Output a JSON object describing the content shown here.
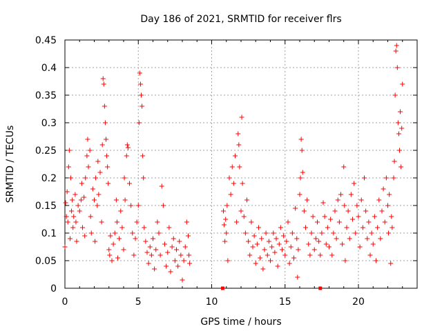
{
  "chart_data": {
    "type": "scatter",
    "title": "Day 186 of 2021, SRMTID for receiver flrs",
    "xlabel": "GPS time / hours",
    "ylabel": "SRMTID / TECUs",
    "xlim": [
      0,
      24
    ],
    "ylim": [
      0,
      0.45
    ],
    "xticks": [
      0,
      5,
      10,
      15,
      20
    ],
    "xtick_labels": [
      "0",
      "5",
      "10",
      "15",
      "20"
    ],
    "yticks": [
      0,
      0.05,
      0.1,
      0.15,
      0.2,
      0.25,
      0.3,
      0.35,
      0.4,
      0.45
    ],
    "ytick_labels": [
      "0",
      "0.05",
      "0.1",
      "0.15",
      "0.2",
      "0.25",
      "0.3",
      "0.35",
      "0.4",
      "0.45"
    ],
    "grid": true,
    "marker": "+",
    "marker_color": "#ff0000",
    "zero_markers": {
      "marker": "square",
      "points": [
        [
          10.75,
          0
        ],
        [
          17.4,
          0
        ]
      ]
    },
    "series": [
      {
        "name": "SRMTID",
        "points": [
          [
            0.0,
            0.075
          ],
          [
            0.05,
            0.155
          ],
          [
            0.1,
            0.13
          ],
          [
            0.15,
            0.175
          ],
          [
            0.2,
            0.12
          ],
          [
            0.25,
            0.22
          ],
          [
            0.3,
            0.25
          ],
          [
            0.35,
            0.09
          ],
          [
            0.4,
            0.2
          ],
          [
            0.45,
            0.14
          ],
          [
            0.5,
            0.16
          ],
          [
            0.55,
            0.11
          ],
          [
            0.6,
            0.13
          ],
          [
            0.7,
            0.17
          ],
          [
            0.75,
            0.12
          ],
          [
            0.8,
            0.085
          ],
          [
            0.9,
            0.15
          ],
          [
            1.0,
            0.14
          ],
          [
            1.1,
            0.16
          ],
          [
            1.15,
            0.19
          ],
          [
            1.2,
            0.11
          ],
          [
            1.3,
            0.165
          ],
          [
            1.35,
            0.095
          ],
          [
            1.4,
            0.2
          ],
          [
            1.5,
            0.24
          ],
          [
            1.55,
            0.27
          ],
          [
            1.6,
            0.22
          ],
          [
            1.7,
            0.25
          ],
          [
            1.75,
            0.13
          ],
          [
            1.8,
            0.1
          ],
          [
            1.9,
            0.18
          ],
          [
            2.0,
            0.16
          ],
          [
            2.05,
            0.085
          ],
          [
            2.1,
            0.2
          ],
          [
            2.2,
            0.15
          ],
          [
            2.25,
            0.23
          ],
          [
            2.3,
            0.17
          ],
          [
            2.4,
            0.21
          ],
          [
            2.5,
            0.12
          ],
          [
            2.55,
            0.26
          ],
          [
            2.6,
            0.38
          ],
          [
            2.65,
            0.37
          ],
          [
            2.7,
            0.33
          ],
          [
            2.75,
            0.3
          ],
          [
            2.8,
            0.27
          ],
          [
            2.85,
            0.24
          ],
          [
            2.9,
            0.22
          ],
          [
            2.95,
            0.19
          ],
          [
            3.0,
            0.07
          ],
          [
            3.05,
            0.06
          ],
          [
            3.1,
            0.095
          ],
          [
            3.2,
            0.05
          ],
          [
            3.3,
            0.08
          ],
          [
            3.4,
            0.1
          ],
          [
            3.5,
            0.16
          ],
          [
            3.55,
            0.12
          ],
          [
            3.6,
            0.055
          ],
          [
            3.7,
            0.09
          ],
          [
            3.8,
            0.14
          ],
          [
            3.9,
            0.11
          ],
          [
            4.0,
            0.07
          ],
          [
            4.05,
            0.2
          ],
          [
            4.1,
            0.16
          ],
          [
            4.2,
            0.24
          ],
          [
            4.25,
            0.26
          ],
          [
            4.3,
            0.255
          ],
          [
            4.4,
            0.19
          ],
          [
            4.5,
            0.15
          ],
          [
            4.6,
            0.1
          ],
          [
            4.7,
            0.06
          ],
          [
            4.8,
            0.09
          ],
          [
            4.9,
            0.12
          ],
          [
            5.0,
            0.15
          ],
          [
            5.05,
            0.3
          ],
          [
            5.1,
            0.39
          ],
          [
            5.15,
            0.37
          ],
          [
            5.2,
            0.35
          ],
          [
            5.25,
            0.33
          ],
          [
            5.3,
            0.24
          ],
          [
            5.35,
            0.2
          ],
          [
            5.4,
            0.11
          ],
          [
            5.5,
            0.085
          ],
          [
            5.6,
            0.065
          ],
          [
            5.7,
            0.045
          ],
          [
            5.8,
            0.075
          ],
          [
            5.9,
            0.06
          ],
          [
            6.0,
            0.09
          ],
          [
            6.1,
            0.035
          ],
          [
            6.2,
            0.07
          ],
          [
            6.3,
            0.12
          ],
          [
            6.4,
            0.1
          ],
          [
            6.5,
            0.06
          ],
          [
            6.6,
            0.185
          ],
          [
            6.7,
            0.15
          ],
          [
            6.8,
            0.08
          ],
          [
            6.9,
            0.04
          ],
          [
            7.0,
            0.065
          ],
          [
            7.1,
            0.11
          ],
          [
            7.2,
            0.03
          ],
          [
            7.3,
            0.075
          ],
          [
            7.4,
            0.09
          ],
          [
            7.5,
            0.05
          ],
          [
            7.6,
            0.07
          ],
          [
            7.7,
            0.04
          ],
          [
            7.8,
            0.085
          ],
          [
            7.9,
            0.06
          ],
          [
            8.0,
            0.015
          ],
          [
            8.1,
            0.05
          ],
          [
            8.2,
            0.075
          ],
          [
            8.3,
            0.12
          ],
          [
            8.4,
            0.095
          ],
          [
            8.45,
            0.06
          ],
          [
            8.5,
            0.045
          ],
          [
            10.8,
            0.14
          ],
          [
            10.85,
            0.115
          ],
          [
            10.9,
            0.085
          ],
          [
            10.95,
            0.125
          ],
          [
            11.0,
            0.1
          ],
          [
            11.05,
            0.15
          ],
          [
            11.1,
            0.05
          ],
          [
            11.2,
            0.2
          ],
          [
            11.3,
            0.17
          ],
          [
            11.4,
            0.22
          ],
          [
            11.5,
            0.19
          ],
          [
            11.6,
            0.24
          ],
          [
            11.7,
            0.12
          ],
          [
            11.8,
            0.28
          ],
          [
            11.85,
            0.26
          ],
          [
            11.9,
            0.22
          ],
          [
            12.0,
            0.14
          ],
          [
            12.05,
            0.31
          ],
          [
            12.1,
            0.19
          ],
          [
            12.2,
            0.13
          ],
          [
            12.3,
            0.1
          ],
          [
            12.4,
            0.16
          ],
          [
            12.5,
            0.085
          ],
          [
            12.6,
            0.06
          ],
          [
            12.7,
            0.12
          ],
          [
            12.8,
            0.075
          ],
          [
            12.9,
            0.095
          ],
          [
            13.0,
            0.045
          ],
          [
            13.1,
            0.08
          ],
          [
            13.2,
            0.11
          ],
          [
            13.3,
            0.055
          ],
          [
            13.4,
            0.09
          ],
          [
            13.5,
            0.035
          ],
          [
            13.6,
            0.07
          ],
          [
            13.7,
            0.1
          ],
          [
            13.8,
            0.06
          ],
          [
            13.9,
            0.085
          ],
          [
            14.0,
            0.05
          ],
          [
            14.1,
            0.075
          ],
          [
            14.2,
            0.1
          ],
          [
            14.3,
            0.065
          ],
          [
            14.4,
            0.09
          ],
          [
            14.5,
            0.04
          ],
          [
            14.6,
            0.08
          ],
          [
            14.7,
            0.11
          ],
          [
            14.8,
            0.07
          ],
          [
            14.9,
            0.095
          ],
          [
            15.0,
            0.06
          ],
          [
            15.1,
            0.085
          ],
          [
            15.2,
            0.12
          ],
          [
            15.3,
            0.045
          ],
          [
            15.4,
            0.075
          ],
          [
            15.5,
            0.1
          ],
          [
            15.6,
            0.055
          ],
          [
            15.7,
            0.145
          ],
          [
            15.8,
            0.09
          ],
          [
            15.85,
            0.02
          ],
          [
            15.9,
            0.07
          ],
          [
            16.0,
            0.17
          ],
          [
            16.05,
            0.2
          ],
          [
            16.1,
            0.27
          ],
          [
            16.15,
            0.25
          ],
          [
            16.2,
            0.21
          ],
          [
            16.3,
            0.14
          ],
          [
            16.4,
            0.11
          ],
          [
            16.5,
            0.16
          ],
          [
            16.6,
            0.08
          ],
          [
            16.7,
            0.06
          ],
          [
            16.8,
            0.1
          ],
          [
            16.9,
            0.13
          ],
          [
            17.0,
            0.07
          ],
          [
            17.1,
            0.09
          ],
          [
            17.2,
            0.12
          ],
          [
            17.3,
            0.085
          ],
          [
            17.4,
            0.06
          ],
          [
            17.5,
            0.1
          ],
          [
            17.6,
            0.155
          ],
          [
            17.7,
            0.13
          ],
          [
            17.8,
            0.08
          ],
          [
            17.9,
            0.11
          ],
          [
            18.0,
            0.075
          ],
          [
            18.1,
            0.125
          ],
          [
            18.2,
            0.06
          ],
          [
            18.3,
            0.1
          ],
          [
            18.4,
            0.14
          ],
          [
            18.5,
            0.09
          ],
          [
            18.6,
            0.16
          ],
          [
            18.7,
            0.12
          ],
          [
            18.8,
            0.17
          ],
          [
            18.9,
            0.08
          ],
          [
            19.0,
            0.22
          ],
          [
            19.05,
            0.15
          ],
          [
            19.1,
            0.05
          ],
          [
            19.2,
            0.11
          ],
          [
            19.3,
            0.14
          ],
          [
            19.4,
            0.09
          ],
          [
            19.5,
            0.17
          ],
          [
            19.6,
            0.125
          ],
          [
            19.7,
            0.19
          ],
          [
            19.8,
            0.1
          ],
          [
            19.9,
            0.15
          ],
          [
            20.0,
            0.13
          ],
          [
            20.1,
            0.075
          ],
          [
            20.2,
            0.16
          ],
          [
            20.3,
            0.11
          ],
          [
            20.4,
            0.2
          ],
          [
            20.5,
            0.14
          ],
          [
            20.6,
            0.09
          ],
          [
            20.7,
            0.12
          ],
          [
            20.8,
            0.06
          ],
          [
            20.9,
            0.1
          ],
          [
            21.0,
            0.08
          ],
          [
            21.1,
            0.13
          ],
          [
            21.2,
            0.05
          ],
          [
            21.3,
            0.11
          ],
          [
            21.4,
            0.16
          ],
          [
            21.5,
            0.09
          ],
          [
            21.6,
            0.14
          ],
          [
            21.7,
            0.18
          ],
          [
            21.8,
            0.12
          ],
          [
            21.9,
            0.2
          ],
          [
            22.0,
            0.15
          ],
          [
            22.05,
            0.1
          ],
          [
            22.1,
            0.17
          ],
          [
            22.2,
            0.045
          ],
          [
            22.25,
            0.13
          ],
          [
            22.3,
            0.11
          ],
          [
            22.4,
            0.2
          ],
          [
            22.45,
            0.23
          ],
          [
            22.5,
            0.35
          ],
          [
            22.55,
            0.43
          ],
          [
            22.6,
            0.44
          ],
          [
            22.65,
            0.4
          ],
          [
            22.7,
            0.3
          ],
          [
            22.75,
            0.28
          ],
          [
            22.8,
            0.25
          ],
          [
            22.85,
            0.32
          ],
          [
            22.9,
            0.22
          ],
          [
            22.95,
            0.29
          ],
          [
            23.0,
            0.37
          ]
        ]
      }
    ]
  }
}
